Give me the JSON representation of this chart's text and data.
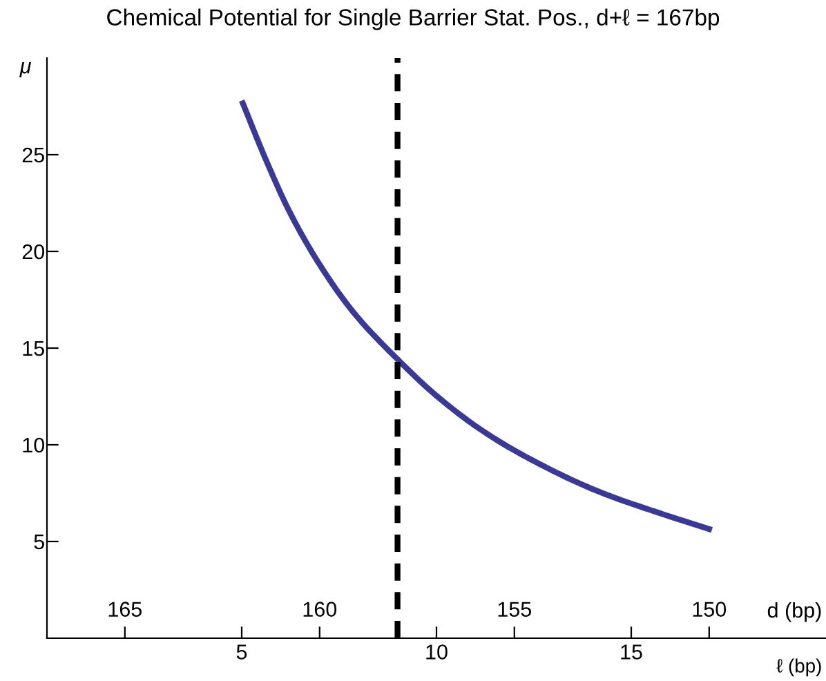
{
  "chart_data": {
    "type": "line",
    "title": "Chemical Potential for Single Barrier Stat. Pos., d+ℓ = 167bp",
    "xlabel": "ℓ (bp)",
    "ylabel": "μ",
    "x2label": "d (bp)",
    "series": [
      {
        "color": "#3a3a96",
        "x": [
          5.0,
          5.65,
          6.24,
          7.07,
          7.89,
          9.01,
          10.02,
          11.2,
          12.37,
          14.14,
          15.68,
          17.07
        ],
        "values": [
          27.8,
          24.6,
          22.0,
          19.1,
          16.8,
          14.4,
          12.5,
          10.7,
          9.3,
          7.6,
          6.5,
          5.6
        ]
      }
    ],
    "xlim": [
      0,
      20
    ],
    "xticks": [
      5,
      10,
      15
    ],
    "ylim": [
      0,
      30
    ],
    "yticks": [
      5,
      10,
      15,
      20,
      25
    ],
    "x2lim": [
      167,
      147
    ],
    "x2ticks": [
      165,
      160,
      155,
      150
    ],
    "ref_lines": [
      {
        "axis": "x",
        "value": 9,
        "color": "#000000",
        "line_style": "dashed"
      }
    ],
    "grid": false,
    "legend": false,
    "marker": "none",
    "line_style": "solid"
  }
}
